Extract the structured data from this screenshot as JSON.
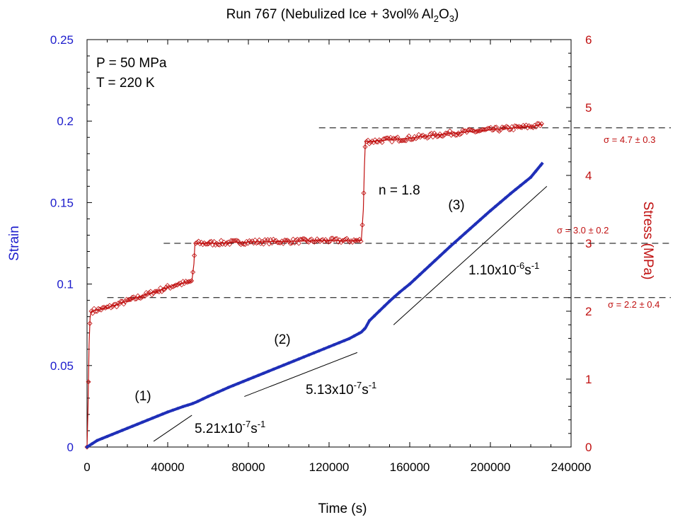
{
  "chart_data": {
    "type": "scatter",
    "title_main": "Run 767 (Nebulized Ice + 3vol% Al",
    "title_sub1": "2",
    "title_mid": "O",
    "title_sub2": "3",
    "title_end": ")",
    "xlabel": "Time (s)",
    "ylabel_left": "Strain",
    "ylabel_right": "Stress (MPa)",
    "xlim": [
      0,
      240000
    ],
    "ylim_left": [
      0,
      0.25
    ],
    "ylim_right": [
      0,
      6
    ],
    "x_ticks": [
      0,
      40000,
      80000,
      120000,
      160000,
      200000,
      240000
    ],
    "x_tick_labels": [
      "0",
      "40000",
      "80000",
      "120000",
      "160000",
      "200000",
      "240000"
    ],
    "y_left_ticks": [
      0,
      0.05,
      0.1,
      0.15,
      0.2,
      0.25
    ],
    "y_left_tick_labels": [
      "0",
      "0.05",
      "0.1",
      "0.15",
      "0.2",
      "0.25"
    ],
    "y_right_ticks": [
      0,
      1,
      2,
      3,
      4,
      5,
      6
    ],
    "y_right_tick_labels": [
      "0",
      "1",
      "2",
      "3",
      "4",
      "5",
      "6"
    ],
    "colors": {
      "strain": "#1f2fb8",
      "stress": "#c01010",
      "left_axis": "#1c1ccc",
      "right_axis": "#c01010",
      "text": "#000000"
    },
    "conditions": {
      "pressure": "P = 50 MPa",
      "temperature": "T = 220 K"
    },
    "series": [
      {
        "name": "Strain",
        "axis": "left",
        "x": [
          0,
          5000,
          10000,
          20000,
          30000,
          40000,
          48000,
          52000,
          54000,
          60000,
          70000,
          80000,
          90000,
          100000,
          110000,
          120000,
          130000,
          136000,
          138000,
          140000,
          145000,
          150000,
          155000,
          160000,
          170000,
          180000,
          190000,
          200000,
          210000,
          220000,
          226000
        ],
        "values": [
          0,
          0.004,
          0.0065,
          0.0115,
          0.0165,
          0.0215,
          0.025,
          0.0265,
          0.0275,
          0.031,
          0.0365,
          0.0415,
          0.0465,
          0.0515,
          0.0565,
          0.0615,
          0.0665,
          0.0705,
          0.073,
          0.0775,
          0.0835,
          0.0895,
          0.095,
          0.1,
          0.1115,
          0.123,
          0.134,
          0.145,
          0.1555,
          0.1655,
          0.1745
        ]
      },
      {
        "name": "Stress",
        "axis": "right",
        "x": [
          0,
          500,
          1000,
          1500,
          2000,
          10000,
          20000,
          30000,
          40000,
          45000,
          50000,
          52000,
          53000,
          53500,
          54000,
          60000,
          80000,
          100000,
          120000,
          130000,
          136000,
          137000,
          137500,
          138000,
          140000,
          160000,
          180000,
          200000,
          220000,
          226000
        ],
        "values": [
          0,
          0.6,
          1.5,
          1.9,
          2.0,
          2.05,
          2.15,
          2.25,
          2.35,
          2.4,
          2.42,
          2.45,
          2.7,
          3.0,
          3.0,
          3.0,
          3.02,
          3.03,
          3.04,
          3.04,
          3.04,
          3.5,
          4.1,
          4.5,
          4.5,
          4.55,
          4.62,
          4.67,
          4.72,
          4.75
        ]
      }
    ],
    "reference_lines": [
      {
        "label": "σ = 4.7 ± 0.3",
        "stress": 4.7,
        "x_start": 115000
      },
      {
        "label": "σ = 3.0 ± 0.2",
        "stress": 3.0,
        "x_start": 38000
      },
      {
        "label": "σ = 2.2 ± 0.4",
        "stress": 2.2,
        "x_start": 10000
      }
    ],
    "fit_lines": [
      {
        "x": [
          33000,
          52000
        ],
        "strain": [
          0.0035,
          0.0195
        ],
        "base": "5.21x10",
        "exp": "-7",
        "unit": "s",
        "unit_exp": "-1"
      },
      {
        "x": [
          78000,
          134000
        ],
        "strain": [
          0.031,
          0.058
        ],
        "base": "5.13x10",
        "exp": "-7",
        "unit": "s",
        "unit_exp": "-1"
      },
      {
        "x": [
          152000,
          228000
        ],
        "strain": [
          0.075,
          0.16
        ],
        "base": "1.10x10",
        "exp": "-6",
        "unit": "s",
        "unit_exp": "-1"
      }
    ],
    "region_labels": [
      {
        "label": "(1)",
        "x": 28000,
        "strain": 0.03
      },
      {
        "label": "(2)",
        "x": 97000,
        "strain": 0.065
      },
      {
        "label": "(3)",
        "x": 182000,
        "strain": 0.148
      }
    ],
    "stress_exponent_label": {
      "label": "n = 1.8",
      "x": 142000,
      "strain": 0.157
    }
  }
}
